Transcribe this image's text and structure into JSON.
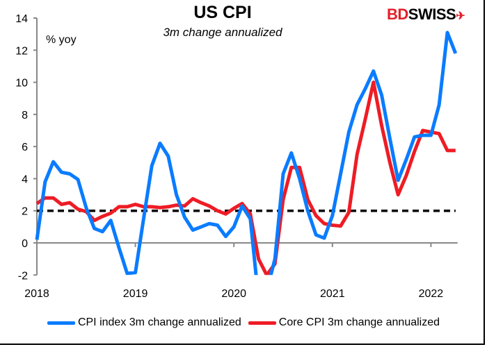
{
  "chart_data": {
    "type": "line",
    "title": "US CPI",
    "subtitle": "3m change annualized",
    "ylabel": "% yoy",
    "logo": "BDSWISS",
    "x_start": "2018-01",
    "x_frequency": "monthly",
    "xticks": [
      "2018",
      "2019",
      "2020",
      "2021",
      "2022"
    ],
    "yticks": [
      -2,
      0,
      2,
      4,
      6,
      8,
      10,
      12,
      14
    ],
    "ylim": [
      -2,
      14
    ],
    "grid": false,
    "legend_position": "bottom",
    "reference_line": {
      "y": 2,
      "style": "dashed",
      "color": "#000000"
    },
    "series": [
      {
        "name": "CPI index 3m change annualized",
        "color": "#0a7cff",
        "values": [
          0.2,
          3.8,
          5.05,
          4.4,
          4.3,
          3.95,
          2.2,
          0.9,
          0.7,
          1.4,
          -0.3,
          -1.9,
          -1.85,
          1.5,
          4.8,
          6.2,
          5.4,
          3.0,
          1.6,
          0.8,
          1.0,
          1.2,
          1.1,
          0.4,
          1.0,
          2.3,
          1.5,
          -3.5,
          -3.0,
          -1.0,
          4.3,
          5.6,
          4.0,
          2.0,
          0.5,
          0.3,
          1.7,
          4.3,
          6.9,
          8.6,
          9.6,
          10.7,
          9.2,
          6.5,
          3.9,
          5.2,
          6.6,
          6.7,
          6.7,
          8.6,
          13.1,
          11.8
        ]
      },
      {
        "name": "Core CPI 3m change annualized",
        "color": "#ee1c25",
        "values": [
          2.45,
          2.8,
          2.8,
          2.4,
          2.5,
          2.1,
          1.95,
          1.4,
          1.65,
          1.85,
          2.25,
          2.25,
          2.4,
          2.25,
          2.25,
          2.2,
          2.25,
          2.35,
          2.3,
          2.75,
          2.5,
          2.3,
          2.0,
          1.8,
          2.15,
          2.45,
          1.8,
          -1.0,
          -2.0,
          -1.3,
          2.7,
          4.7,
          4.7,
          2.7,
          1.7,
          1.2,
          1.1,
          1.05,
          1.9,
          5.5,
          7.7,
          10.0,
          7.3,
          5.0,
          3.0,
          4.2,
          5.7,
          7.0,
          6.9,
          6.8,
          5.75,
          5.75
        ]
      }
    ]
  }
}
